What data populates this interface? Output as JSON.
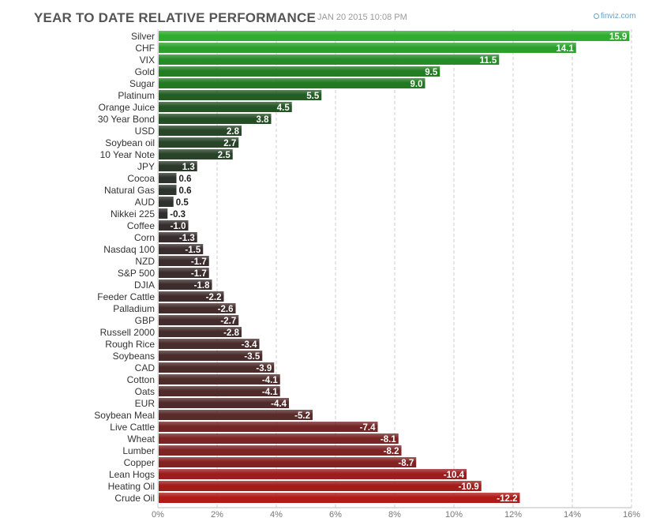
{
  "header": {
    "title": "YEAR TO DATE RELATIVE PERFORMANCE",
    "timestamp": "JAN 20 2015 10:08 PM",
    "brand": "finviz.com"
  },
  "colors": {
    "positive_top": "#2fae2f",
    "positive_bottom": "#1f6b1f",
    "neutral": "#2e2e2e",
    "negative_mid": "#5a2a2a",
    "negative_bottom": "#b01a1a",
    "grid": "#cccccc",
    "label": "#333333"
  },
  "chart_data": {
    "type": "bar",
    "orientation": "horizontal",
    "title": "YEAR TO DATE RELATIVE PERFORMANCE",
    "xlim": [
      0,
      16
    ],
    "xticks": [
      0,
      2,
      4,
      6,
      8,
      10,
      12,
      14,
      16
    ],
    "xtick_labels": [
      "0%",
      "2%",
      "4%",
      "6%",
      "8%",
      "10%",
      "12%",
      "14%",
      "16%"
    ],
    "bar_length": "absolute value",
    "grid": true,
    "categories": [
      "Silver",
      "CHF",
      "VIX",
      "Gold",
      "Sugar",
      "Platinum",
      "Orange Juice",
      "30 Year Bond",
      "USD",
      "Soybean oil",
      "10 Year Note",
      "JPY",
      "Cocoa",
      "Natural Gas",
      "AUD",
      "Nikkei 225",
      "Coffee",
      "Corn",
      "Nasdaq 100",
      "NZD",
      "S&P 500",
      "DJIA",
      "Feeder Cattle",
      "Palladium",
      "GBP",
      "Russell 2000",
      "Rough Rice",
      "Soybeans",
      "CAD",
      "Cotton",
      "Oats",
      "EUR",
      "Soybean Meal",
      "Live Cattle",
      "Wheat",
      "Lumber",
      "Copper",
      "Lean Hogs",
      "Heating Oil",
      "Crude Oil"
    ],
    "values": [
      15.9,
      14.1,
      11.5,
      9.5,
      9.0,
      5.5,
      4.5,
      3.8,
      2.8,
      2.7,
      2.5,
      1.3,
      0.6,
      0.6,
      0.5,
      -0.3,
      -1.0,
      -1.3,
      -1.5,
      -1.7,
      -1.7,
      -1.8,
      -2.2,
      -2.6,
      -2.7,
      -2.8,
      -3.4,
      -3.5,
      -3.9,
      -4.1,
      -4.1,
      -4.4,
      -5.2,
      -7.4,
      -8.1,
      -8.2,
      -8.7,
      -10.4,
      -10.9,
      -12.2
    ],
    "value_labels": [
      "15.9",
      "14.1",
      "11.5",
      "9.5",
      "9.0",
      "5.5",
      "4.5",
      "3.8",
      "2.8",
      "2.7",
      "2.5",
      "1.3",
      "0.6",
      "0.6",
      "0.5",
      "-0.3",
      "-1.0",
      "-1.3",
      "-1.5",
      "-1.7",
      "-1.7",
      "-1.8",
      "-2.2",
      "-2.6",
      "-2.7",
      "-2.8",
      "-3.4",
      "-3.5",
      "-3.9",
      "-4.1",
      "-4.1",
      "-4.4",
      "-5.2",
      "-7.4",
      "-8.1",
      "-8.2",
      "-8.7",
      "-10.4",
      "-10.9",
      "-12.2"
    ]
  }
}
